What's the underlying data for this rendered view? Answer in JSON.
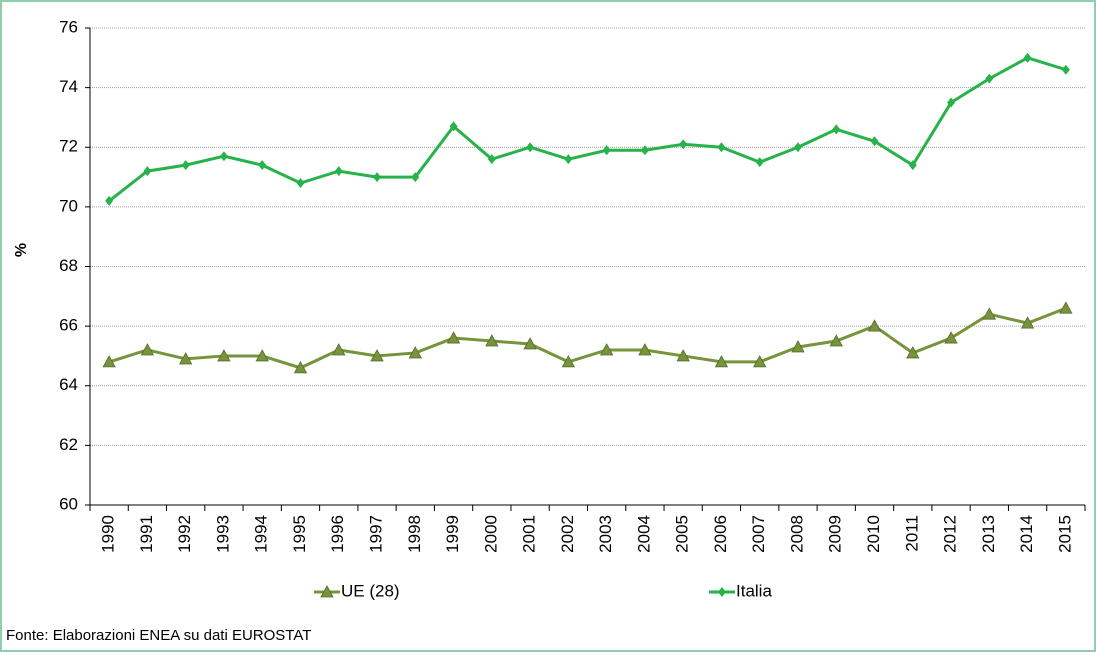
{
  "chart_data": {
    "type": "line",
    "ylabel": "%",
    "note": "Fonte: Elaborazioni ENEA su dati EUROSTAT",
    "categories": [
      "1990",
      "1991",
      "1992",
      "1993",
      "1994",
      "1995",
      "1996",
      "1997",
      "1998",
      "1999",
      "2000",
      "2001",
      "2002",
      "2003",
      "2004",
      "2005",
      "2006",
      "2007",
      "2008",
      "2009",
      "2010",
      "2011",
      "2012",
      "2013",
      "2014",
      "2015"
    ],
    "series": [
      {
        "name": "UE (28)",
        "color": "#77933c",
        "marker": "triangle",
        "values": [
          64.8,
          65.2,
          64.9,
          65.0,
          65.0,
          64.6,
          65.2,
          65.0,
          65.1,
          65.6,
          65.5,
          65.4,
          64.8,
          65.2,
          65.2,
          65.0,
          64.8,
          64.8,
          65.3,
          65.5,
          66.0,
          65.1,
          65.6,
          66.4,
          66.1,
          66.6
        ]
      },
      {
        "name": "Italia",
        "color": "#27b24a",
        "marker": "diamond",
        "values": [
          70.2,
          71.2,
          71.4,
          71.7,
          71.4,
          70.8,
          71.2,
          71.0,
          71.0,
          72.7,
          71.6,
          72.0,
          71.6,
          71.9,
          71.9,
          72.1,
          72.0,
          71.5,
          72.0,
          72.6,
          72.2,
          71.4,
          73.5,
          74.3,
          75.0,
          74.6
        ]
      }
    ],
    "ylim": [
      60,
      76
    ],
    "yticks": [
      60,
      62,
      64,
      66,
      68,
      70,
      72,
      74,
      76
    ],
    "grid": true
  }
}
